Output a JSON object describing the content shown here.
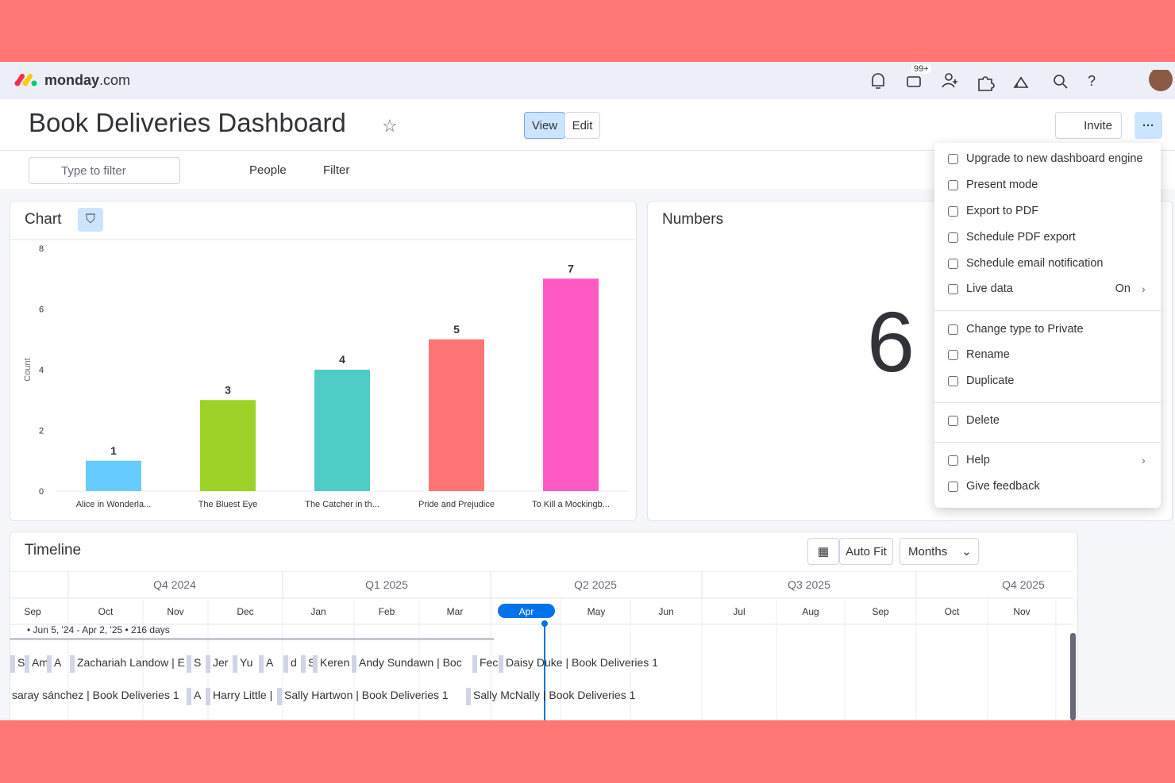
{
  "header": {
    "brand": "monday",
    "brand_suffix": ".com",
    "inbox_badge": "99+"
  },
  "dashboard": {
    "title": "Book Deliveries Dashboard",
    "view": "View",
    "edit": "Edit",
    "invite": "Invite"
  },
  "toolbar": {
    "filter_placeholder": "Type to filter",
    "people": "People",
    "filter": "Filter"
  },
  "chart_widget": {
    "title": "Chart"
  },
  "chart_data": {
    "type": "bar",
    "y_label": "Count",
    "categories": [
      "Alice in Wonderla...",
      "The Bluest Eye",
      "The Catcher in th...",
      "Pride and Prejudice",
      "To Kill a Mockingb..."
    ],
    "values": [
      1,
      3,
      4,
      5,
      7
    ],
    "colors": [
      "#66ccff",
      "#9cd326",
      "#4eccc6",
      "#ff7575",
      "#ff5ac4"
    ],
    "ylim": [
      0,
      8
    ],
    "yticks": [
      0,
      2,
      4,
      6,
      8
    ],
    "grid": false
  },
  "numbers_widget": {
    "title": "Numbers",
    "value": "6"
  },
  "menu": {
    "items": [
      {
        "label": "Upgrade to new dashboard engine"
      },
      {
        "label": "Present mode"
      },
      {
        "label": "Export to PDF"
      },
      {
        "label": "Schedule PDF export"
      },
      {
        "label": "Schedule email notification"
      },
      {
        "label": "Live data",
        "state": "On"
      },
      {
        "label": "Change type to Private"
      },
      {
        "label": "Rename"
      },
      {
        "label": "Duplicate"
      },
      {
        "label": "Delete"
      },
      {
        "label": "Help"
      },
      {
        "label": "Give feedback"
      }
    ]
  },
  "timeline": {
    "title": "Timeline",
    "auto_fit": "Auto Fit",
    "zoom": "Months",
    "quarters": [
      "Q4 2024",
      "Q1 2025",
      "Q2 2025",
      "Q3 2025",
      "Q4 2025"
    ],
    "months": [
      "Sep",
      "Oct",
      "Nov",
      "Dec",
      "Jan",
      "Feb",
      "Mar",
      "Apr",
      "May",
      "Jun",
      "Jul",
      "Aug",
      "Sep",
      "Oct",
      "Nov"
    ],
    "range_label": "• Jun 5, '24 - Apr 2, '25 • 216 days",
    "rows": [
      [
        "S",
        "Am",
        "A",
        "Zachariah Landow | E",
        "S",
        "Jer",
        "Yu",
        "A",
        "d",
        "S",
        "Keren",
        "Andy Sundawn | Boc",
        "Fec",
        "Daisy Duke | Book Deliveries 1"
      ],
      [
        "saray sánchez | Book Deliveries 1",
        "A",
        "Harry Little |",
        "Sally Hartwon | Book Deliveries 1",
        "Sally McNally | Book Deliveries 1"
      ]
    ]
  }
}
